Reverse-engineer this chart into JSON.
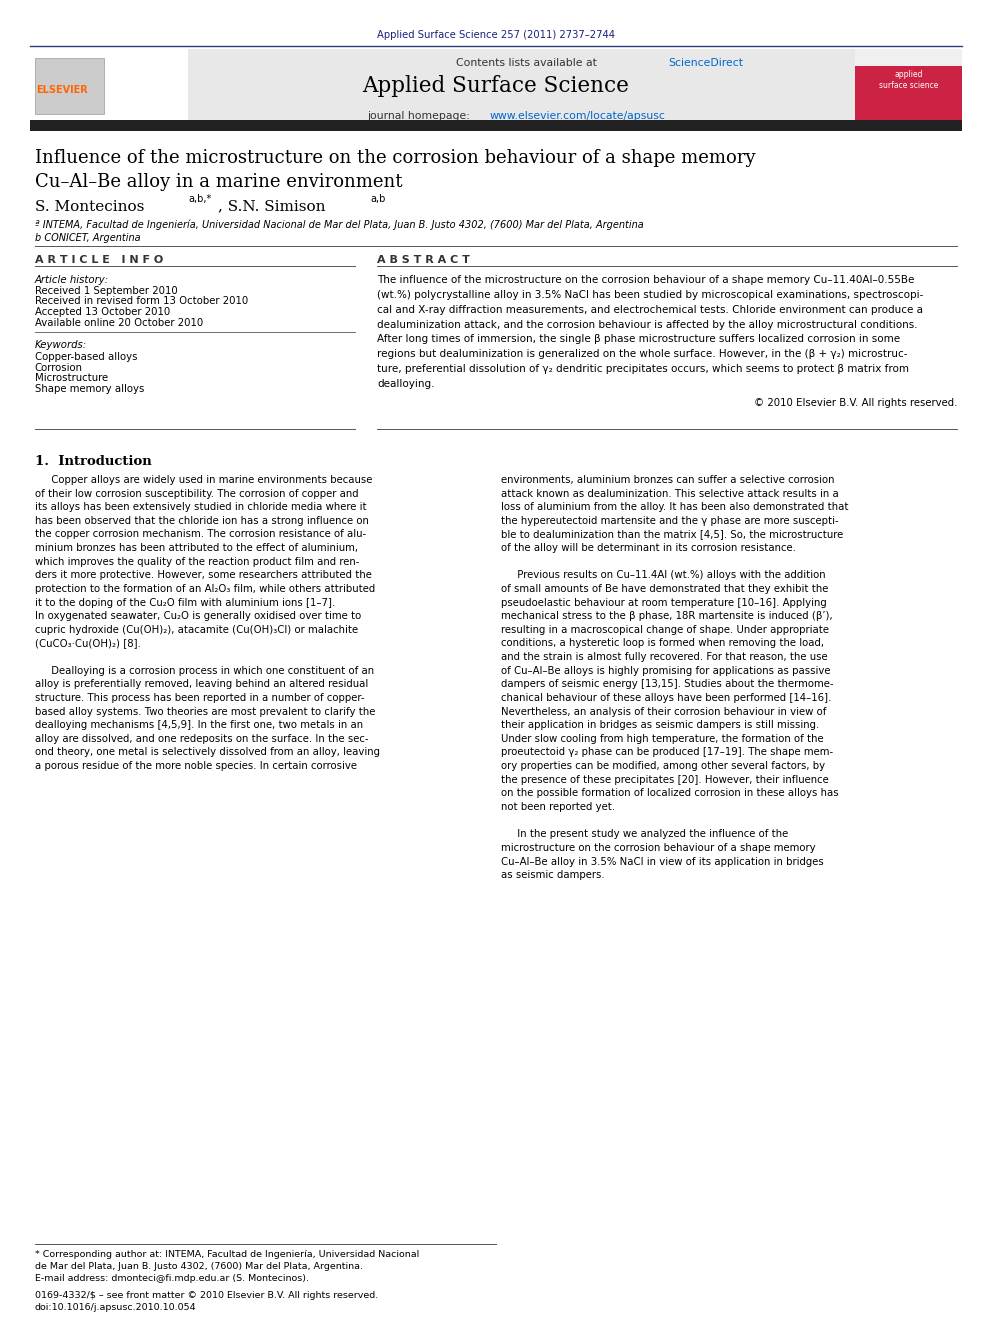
{
  "page_width": 9.92,
  "page_height": 13.23,
  "bg_color": "#ffffff",
  "journal_ref": "Applied Surface Science 257 (2011) 2737–2744",
  "journal_ref_color": "#1a237e",
  "contents_line": "Contents lists available at",
  "science_direct": "ScienceDirect",
  "science_direct_color": "#0066cc",
  "journal_name": "Applied Surface Science",
  "journal_homepage_prefix": "journal homepage: ",
  "journal_url": "www.elsevier.com/locate/apsusc",
  "journal_url_color": "#0066cc",
  "header_bg": "#e8e8e8",
  "dark_bar_color": "#1a1a1a",
  "elsevier_color": "#ff6600",
  "paper_title_line1": "Influence of the microstructure on the corrosion behaviour of a shape memory",
  "paper_title_line2": "Cu–Al–Be alloy in a marine environment",
  "affil_a": "ª INTEMA, Facultad de Ingeniería, Universidad Nacional de Mar del Plata, Juan B. Justo 4302, (7600) Mar del Plata, Argentina",
  "affil_b": "b CONICET, Argentina",
  "article_info_header": "A R T I C L E   I N F O",
  "abstract_header": "A B S T R A C T",
  "article_history_label": "Article history:",
  "received1": "Received 1 September 2010",
  "received2": "Received in revised form 13 October 2010",
  "accepted": "Accepted 13 October 2010",
  "available": "Available online 20 October 2010",
  "keywords_label": "Keywords:",
  "keyword1": "Copper-based alloys",
  "keyword2": "Corrosion",
  "keyword3": "Microstructure",
  "keyword4": "Shape memory alloys",
  "abstract_text_lines": [
    "The influence of the microstructure on the corrosion behaviour of a shape memory Cu–11.40Al–0.55Be",
    "(wt.%) polycrystalline alloy in 3.5% NaCl has been studied by microscopical examinations, spectroscopi-",
    "cal and X-ray diffraction measurements, and electrochemical tests. Chloride environment can produce a",
    "dealuminization attack, and the corrosion behaviour is affected by the alloy microstructural conditions.",
    "After long times of immersion, the single β phase microstructure suffers localized corrosion in some",
    "regions but dealuminization is generalized on the whole surface. However, in the (β + γ₂) microstruc-",
    "ture, preferential dissolution of γ₂ dendritic precipitates occurs, which seems to protect β matrix from",
    "dealloying."
  ],
  "copyright_text": "© 2010 Elsevier B.V. All rights reserved.",
  "intro_header": "1.  Introduction",
  "intro_col1_lines": [
    "     Copper alloys are widely used in marine environments because",
    "of their low corrosion susceptibility. The corrosion of copper and",
    "its alloys has been extensively studied in chloride media where it",
    "has been observed that the chloride ion has a strong influence on",
    "the copper corrosion mechanism. The corrosion resistance of alu-",
    "minium bronzes has been attributed to the effect of aluminium,",
    "which improves the quality of the reaction product film and ren-",
    "ders it more protective. However, some researchers attributed the",
    "protection to the formation of an Al₂O₃ film, while others attributed",
    "it to the doping of the Cu₂O film with aluminium ions [1–7].",
    "In oxygenated seawater, Cu₂O is generally oxidised over time to",
    "cupric hydroxide (Cu(OH)₂), atacamite (Cu(OH)₃Cl) or malachite",
    "(CuCO₃·Cu(OH)₂) [8].",
    "",
    "     Dealloying is a corrosion process in which one constituent of an",
    "alloy is preferentially removed, leaving behind an altered residual",
    "structure. This process has been reported in a number of copper-",
    "based alloy systems. Two theories are most prevalent to clarify the",
    "dealloying mechanisms [4,5,9]. In the first one, two metals in an",
    "alloy are dissolved, and one redeposits on the surface. In the sec-",
    "ond theory, one metal is selectively dissolved from an alloy, leaving",
    "a porous residue of the more noble species. In certain corrosive"
  ],
  "intro_col2_lines": [
    "environments, aluminium bronzes can suffer a selective corrosion",
    "attack known as dealuminization. This selective attack results in a",
    "loss of aluminium from the alloy. It has been also demonstrated that",
    "the hypereutectoid martensite and the γ phase are more suscepti-",
    "ble to dealuminization than the matrix [4,5]. So, the microstructure",
    "of the alloy will be determinant in its corrosion resistance.",
    "",
    "     Previous results on Cu–11.4Al (wt.%) alloys with the addition",
    "of small amounts of Be have demonstrated that they exhibit the",
    "pseudoelastic behaviour at room temperature [10–16]. Applying",
    "mechanical stress to the β phase, 18R martensite is induced (β’),",
    "resulting in a macroscopical change of shape. Under appropriate",
    "conditions, a hysteretic loop is formed when removing the load,",
    "and the strain is almost fully recovered. For that reason, the use",
    "of Cu–Al–Be alloys is highly promising for applications as passive",
    "dampers of seismic energy [13,15]. Studies about the thermome-",
    "chanical behaviour of these alloys have been performed [14–16].",
    "Nevertheless, an analysis of their corrosion behaviour in view of",
    "their application in bridges as seismic dampers is still missing.",
    "Under slow cooling from high temperature, the formation of the",
    "proeutectoid γ₂ phase can be produced [17–19]. The shape mem-",
    "ory properties can be modified, among other several factors, by",
    "the presence of these precipitates [20]. However, their influence",
    "on the possible formation of localized corrosion in these alloys has",
    "not been reported yet.",
    "",
    "     In the present study we analyzed the influence of the",
    "microstructure on the corrosion behaviour of a shape memory",
    "Cu–Al–Be alloy in 3.5% NaCl in view of its application in bridges",
    "as seismic dampers."
  ],
  "footnote_line1": "* Corresponding author at: INTEMA, Facultad de Ingeniería, Universidad Nacional",
  "footnote_line2": "de Mar del Plata, Juan B. Justo 4302, (7600) Mar del Plata, Argentina.",
  "footnote_email": "E-mail address: dmonteci@fi.mdp.edu.ar (S. Montecinos).",
  "bottom_line1": "0169-4332/$ – see front matter © 2010 Elsevier B.V. All rights reserved.",
  "bottom_line2": "doi:10.1016/j.apsusc.2010.10.054"
}
